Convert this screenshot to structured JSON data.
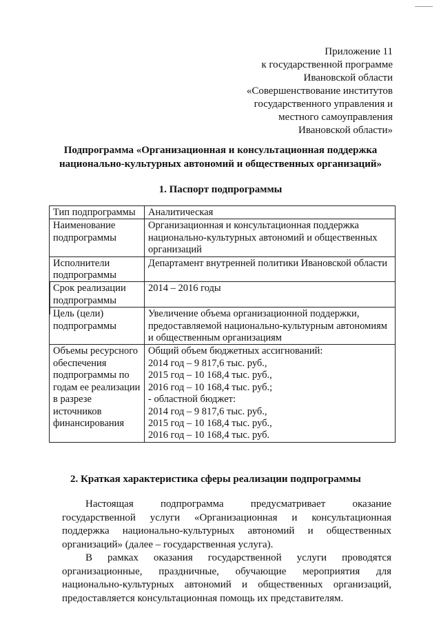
{
  "appendix": [
    "Приложение 11",
    "к государственной программе",
    "Ивановской области",
    "«Совершенствование институтов",
    "государственного управления и",
    "местного самоуправления",
    "Ивановской области»"
  ],
  "title": [
    "Подпрограмма «Организационная и консультационная поддержка",
    "национально-культурных автономий и общественных организаций»"
  ],
  "section1": "1.  Паспорт подпрограммы",
  "passport": [
    {
      "key": "Тип подпрограммы",
      "value": [
        "Аналитическая"
      ]
    },
    {
      "key": "Наименование подпрограммы",
      "value": [
        "Организационная и консультационная поддержка национально-культурных автономий и общественных организаций"
      ]
    },
    {
      "key": "Исполнители подпрограммы",
      "value": [
        "Департамент внутренней политики Ивановской области"
      ]
    },
    {
      "key": "Срок реализации подпрограммы",
      "value": [
        "2014 – 2016 годы"
      ]
    },
    {
      "key": "Цель (цели) подпрограммы",
      "value": [
        "Увеличение объема организационной поддержки, предоставляемой национально-культурным автономиям и общественным организациям"
      ]
    },
    {
      "key": "Объемы ресурсного обеспечения подпрограммы по годам ее реализации в разрезе источников финансирования",
      "value": [
        "Общий объем бюджетных ассигнований:",
        "2014 год – 9 817,6 тыс. руб.,",
        "2015 год – 10 168,4 тыс. руб.,",
        "2016 год – 10 168,4 тыс. руб.;",
        "- областной бюджет:",
        "2014 год – 9 817,6 тыс. руб.,",
        "2015 год – 10 168,4 тыс. руб.,",
        "2016 год – 10 168,4 тыс. руб."
      ]
    }
  ],
  "section2": "2.  Краткая характеристика сферы реализации подпрограммы",
  "paragraphs": [
    "Настоящая подпрограмма предусматривает оказание государственной услуги «Организационная и консультационная поддержка национально-культурных автономий и общественных организаций» (далее – государственная услуга).",
    "В рамках оказания государственной услуги проводятся организационные, праздничные, обучающие мероприятия для национально-культурных автономий и общественных организаций, предоставляется консультационная помощь их представителям."
  ]
}
